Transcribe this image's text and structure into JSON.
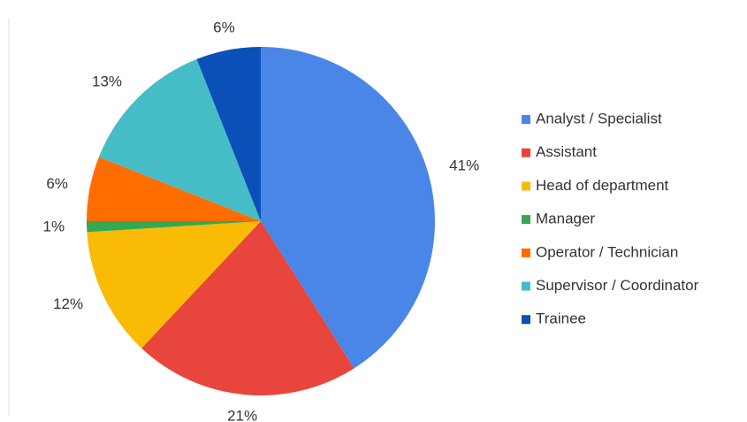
{
  "chart_data": {
    "type": "pie",
    "categories": [
      "Analyst / Specialist",
      "Assistant",
      "Head of department",
      "Manager",
      "Operator / Technician",
      "Supervisor / Coordinator",
      "Trainee"
    ],
    "values": [
      41,
      21,
      12,
      1,
      6,
      13,
      6
    ],
    "value_labels": [
      "41%",
      "21%",
      "12%",
      "1%",
      "6%",
      "13%",
      "6%"
    ],
    "colors": [
      "#4a86e8",
      "#e8453c",
      "#f9bb04",
      "#34a853",
      "#ff6d01",
      "#46bdc6",
      "#0b4fb8"
    ],
    "legend": "right"
  }
}
